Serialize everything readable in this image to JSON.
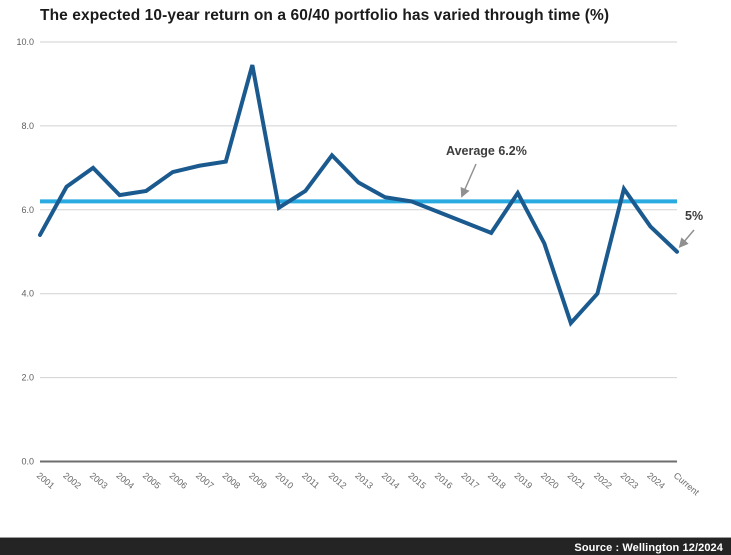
{
  "title": "The expected 10-year return on a 60/40 portfolio has varied through time (%)",
  "chart_data": {
    "type": "line",
    "title": "The expected 10-year return on a 60/40 portfolio has varied through time (%)",
    "categories": [
      "2001",
      "2002",
      "2003",
      "2004",
      "2005",
      "2006",
      "2007",
      "2008",
      "2009",
      "2010",
      "2011",
      "2012",
      "2013",
      "2014",
      "2015",
      "2016",
      "2017",
      "2018",
      "2019",
      "2020",
      "2021",
      "2022",
      "2023",
      "2024",
      "Current"
    ],
    "series": [
      {
        "name": "Expected 10-year return on a 60/40 portfolio (%)",
        "color": "#1b5a8f",
        "values": [
          5.4,
          6.55,
          7.0,
          6.35,
          6.45,
          6.9,
          7.05,
          7.15,
          9.45,
          6.05,
          6.45,
          7.3,
          6.65,
          6.3,
          6.2,
          5.95,
          5.7,
          5.45,
          6.4,
          5.2,
          3.3,
          4.0,
          6.5,
          5.6,
          5.0
        ]
      }
    ],
    "reference_line": {
      "value": 6.2,
      "label": "Average 6.2%",
      "color": "#29abe2"
    },
    "end_point_label": "5%",
    "end_point_value": 5.0,
    "ylim": [
      0,
      10
    ],
    "yticks": [
      0,
      2,
      4,
      6,
      8,
      10
    ],
    "ytick_labels": [
      "0.0",
      "2.0",
      "4.0",
      "6.0",
      "8.0",
      "10.0"
    ],
    "grid": "horizontal",
    "legend": "none",
    "xlabel": "",
    "ylabel": ""
  },
  "annotations": {
    "average": "Average 6.2%",
    "current": "5%"
  },
  "footer": {
    "source": "Source : Wellington 12/2024"
  },
  "colors": {
    "line": "#1b5a8f",
    "reference": "#29abe2",
    "grid": "#d2d2d2",
    "axis": "#6e6e6e",
    "tick_text": "#5f5f5f",
    "xtick_text": "#6b6b6b",
    "annotation_text": "#3d3d3d",
    "arrow": "#909090",
    "title_text": "#1b1b1b",
    "footer_bg": "#242424",
    "footer_text": "#ffffff"
  }
}
